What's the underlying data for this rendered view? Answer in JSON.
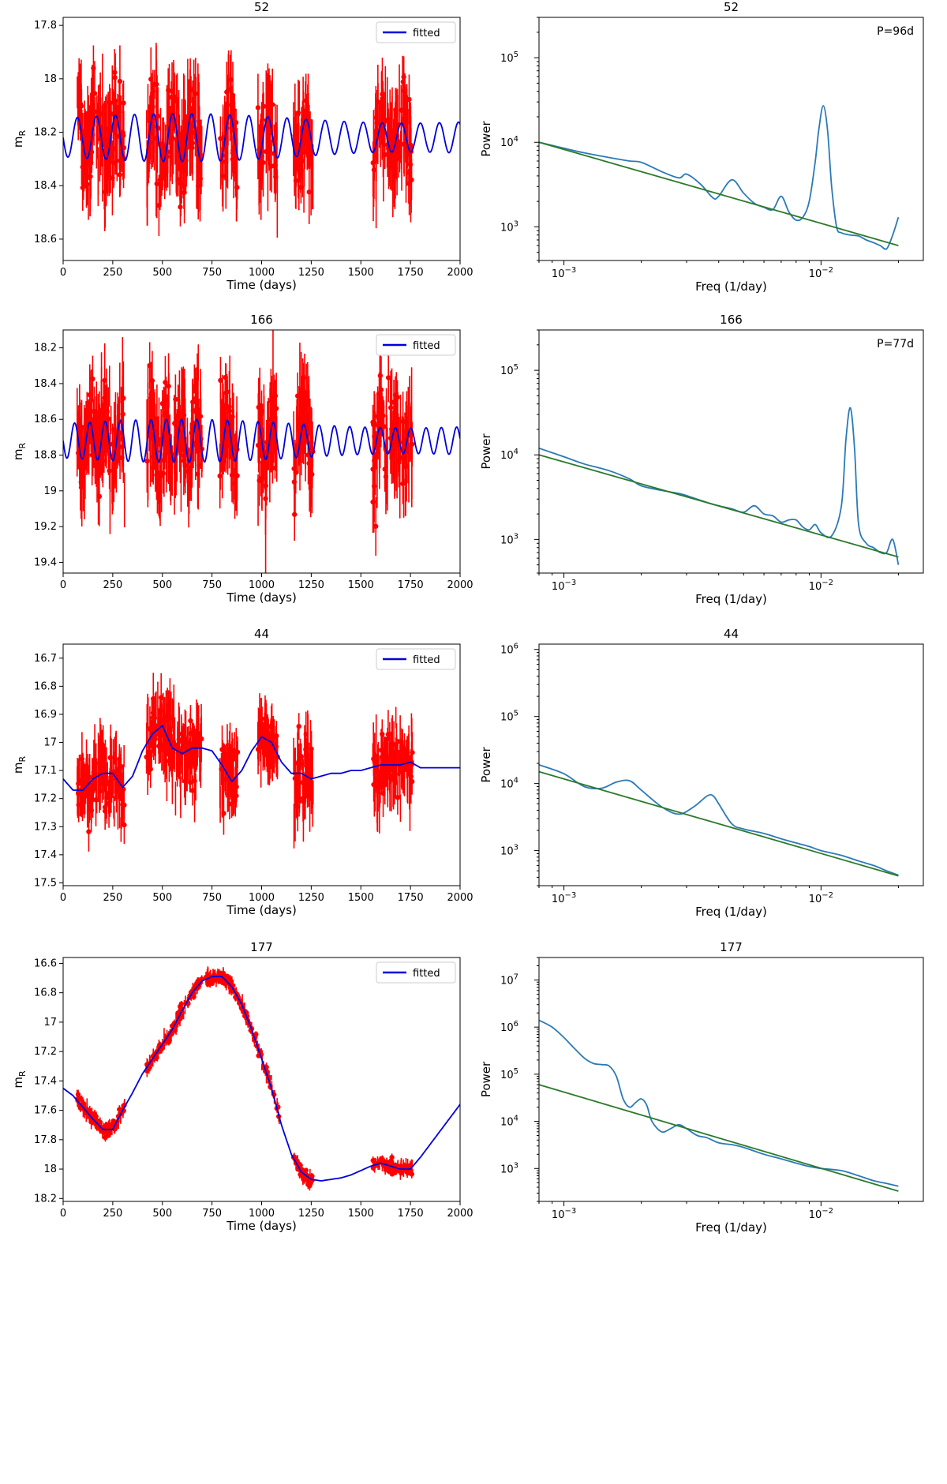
{
  "figure": {
    "layout": "4 rows x 2 columns"
  },
  "colors": {
    "observed": "#ff0000",
    "fitted": "#0000dd",
    "psd": "#2a7ab8",
    "powerlaw": "#2a7a2a"
  },
  "chart_data": [
    {
      "type": "line",
      "kind": "lightcurve",
      "title": "52",
      "xlabel": "Time (days)",
      "ylabel": "m_R",
      "xlim": [
        0,
        2000
      ],
      "ylim": [
        18.68,
        17.77
      ],
      "y_inverted": true,
      "xticks": [
        0,
        250,
        500,
        750,
        1000,
        1250,
        1500,
        1750,
        2000
      ],
      "yticks": [
        17.8,
        18.0,
        18.2,
        18.4,
        18.6
      ],
      "legend": {
        "label": "fitted",
        "position": "top-right"
      },
      "series": [
        {
          "name": "fitted",
          "role": "model",
          "period_days": 96,
          "mean": 18.22,
          "amplitude": 0.09,
          "x_range": [
            0,
            2000
          ]
        },
        {
          "role": "observed",
          "segments": [
            [
              70,
              310
            ],
            [
              420,
              700
            ],
            [
              790,
              880
            ],
            [
              980,
              1080
            ],
            [
              1160,
              1260
            ],
            [
              1560,
              1760
            ]
          ],
          "mean": 18.25,
          "scatter": 0.2
        }
      ]
    },
    {
      "type": "line",
      "kind": "psd",
      "title": "52",
      "xlabel": "Freq (1/day)",
      "ylabel": "Power",
      "x_scale": "log",
      "y_scale": "log",
      "xlim": [
        0.0008,
        0.025
      ],
      "ylim": [
        400,
        300000
      ],
      "xticks": [
        0.001,
        0.01
      ],
      "yticks": [
        1000,
        10000,
        100000
      ],
      "annotation": "P=96d",
      "powerlaw": {
        "x": [
          0.0008,
          0.02
        ],
        "y": [
          10000,
          600
        ]
      },
      "psd": {
        "x": [
          0.0008,
          0.001,
          0.0012,
          0.0015,
          0.0018,
          0.002,
          0.0024,
          0.0028,
          0.003,
          0.0034,
          0.0038,
          0.004,
          0.0045,
          0.005,
          0.0055,
          0.006,
          0.0065,
          0.007,
          0.0075,
          0.008,
          0.0085,
          0.009,
          0.0095,
          0.0098,
          0.0102,
          0.0106,
          0.011,
          0.0115,
          0.012,
          0.013,
          0.014,
          0.015,
          0.016,
          0.017,
          0.018,
          0.019,
          0.02
        ],
        "y": [
          10000,
          8500,
          7500,
          6600,
          6000,
          5800,
          4500,
          3800,
          4200,
          3200,
          2200,
          2300,
          3600,
          2500,
          1900,
          1700,
          1600,
          2300,
          1500,
          1200,
          1300,
          2000,
          6000,
          14000,
          27000,
          14000,
          3000,
          1000,
          850,
          800,
          780,
          700,
          650,
          600,
          550,
          800,
          1300
        ]
      }
    },
    {
      "type": "line",
      "kind": "lightcurve",
      "title": "166",
      "xlabel": "Time (days)",
      "ylabel": "m_R",
      "xlim": [
        0,
        2000
      ],
      "ylim": [
        19.46,
        18.1
      ],
      "y_inverted": true,
      "xticks": [
        0,
        250,
        500,
        750,
        1000,
        1250,
        1500,
        1750,
        2000
      ],
      "yticks": [
        18.2,
        18.4,
        18.6,
        18.8,
        19.0,
        19.2,
        19.4
      ],
      "legend": {
        "label": "fitted",
        "position": "top-right"
      },
      "series": [
        {
          "name": "fitted",
          "role": "model",
          "period_days": 77,
          "mean": 18.72,
          "amplitude": 0.12,
          "x_range": [
            0,
            2000
          ]
        },
        {
          "role": "observed",
          "segments": [
            [
              70,
              310
            ],
            [
              420,
              700
            ],
            [
              790,
              880
            ],
            [
              980,
              1080
            ],
            [
              1160,
              1260
            ],
            [
              1560,
              1760
            ]
          ],
          "mean": 18.75,
          "scatter": 0.3
        }
      ]
    },
    {
      "type": "line",
      "kind": "psd",
      "title": "166",
      "xlabel": "Freq (1/day)",
      "ylabel": "Power",
      "x_scale": "log",
      "y_scale": "log",
      "xlim": [
        0.0008,
        0.025
      ],
      "ylim": [
        400,
        300000
      ],
      "xticks": [
        0.001,
        0.01
      ],
      "yticks": [
        1000,
        10000,
        100000
      ],
      "annotation": "P=77d",
      "powerlaw": {
        "x": [
          0.0008,
          0.02
        ],
        "y": [
          10000,
          620
        ]
      },
      "psd": {
        "x": [
          0.0008,
          0.001,
          0.0012,
          0.0015,
          0.0018,
          0.002,
          0.0024,
          0.0028,
          0.003,
          0.0034,
          0.0038,
          0.004,
          0.0045,
          0.005,
          0.0055,
          0.006,
          0.0065,
          0.007,
          0.0075,
          0.008,
          0.0085,
          0.009,
          0.0095,
          0.01,
          0.011,
          0.012,
          0.0125,
          0.013,
          0.0135,
          0.014,
          0.015,
          0.016,
          0.017,
          0.018,
          0.019,
          0.02
        ],
        "y": [
          12000,
          9500,
          7800,
          6500,
          5200,
          4300,
          3800,
          3500,
          3300,
          2900,
          2600,
          2500,
          2300,
          2100,
          2500,
          2000,
          1900,
          1600,
          1700,
          1700,
          1400,
          1300,
          1500,
          1200,
          1100,
          2500,
          15000,
          36000,
          12000,
          1500,
          900,
          800,
          700,
          700,
          1000,
          500
        ]
      }
    },
    {
      "type": "line",
      "kind": "lightcurve",
      "title": "44",
      "xlabel": "Time (days)",
      "ylabel": "m_R",
      "xlim": [
        0,
        2000
      ],
      "ylim": [
        17.51,
        16.65
      ],
      "y_inverted": true,
      "xticks": [
        0,
        250,
        500,
        750,
        1000,
        1250,
        1500,
        1750,
        2000
      ],
      "yticks": [
        16.7,
        16.8,
        16.9,
        17.0,
        17.1,
        17.2,
        17.3,
        17.4,
        17.5
      ],
      "legend": {
        "label": "fitted",
        "position": "top-right"
      },
      "series": [
        {
          "name": "fitted",
          "role": "model",
          "x": [
            0,
            50,
            100,
            150,
            200,
            250,
            300,
            350,
            400,
            450,
            500,
            550,
            600,
            650,
            700,
            750,
            800,
            850,
            900,
            950,
            1000,
            1050,
            1100,
            1150,
            1200,
            1250,
            1300,
            1350,
            1400,
            1450,
            1500,
            1550,
            1600,
            1650,
            1700,
            1750,
            1800,
            1900,
            2000
          ],
          "y": [
            17.13,
            17.17,
            17.17,
            17.13,
            17.11,
            17.11,
            17.16,
            17.12,
            17.03,
            16.97,
            16.94,
            17.02,
            17.04,
            17.02,
            17.02,
            17.03,
            17.08,
            17.14,
            17.1,
            17.03,
            16.98,
            17.0,
            17.07,
            17.11,
            17.11,
            17.13,
            17.12,
            17.11,
            17.11,
            17.1,
            17.1,
            17.09,
            17.08,
            17.08,
            17.08,
            17.07,
            17.09,
            17.09,
            17.09
          ]
        },
        {
          "role": "observed",
          "segments": [
            [
              70,
              310
            ],
            [
              420,
              700
            ],
            [
              790,
              880
            ],
            [
              980,
              1080
            ],
            [
              1160,
              1260
            ],
            [
              1560,
              1760
            ]
          ],
          "scatter": 0.14
        }
      ]
    },
    {
      "type": "line",
      "kind": "psd",
      "title": "44",
      "xlabel": "Freq (1/day)",
      "ylabel": "Power",
      "x_scale": "log",
      "y_scale": "log",
      "xlim": [
        0.0008,
        0.025
      ],
      "ylim": [
        300,
        1200000
      ],
      "xticks": [
        0.001,
        0.01
      ],
      "yticks": [
        1000,
        10000,
        100000,
        1000000
      ],
      "powerlaw": {
        "x": [
          0.0008,
          0.02
        ],
        "y": [
          15000,
          420
        ]
      },
      "psd": {
        "x": [
          0.0008,
          0.001,
          0.0012,
          0.0014,
          0.0016,
          0.0018,
          0.002,
          0.0024,
          0.0028,
          0.0032,
          0.0036,
          0.0038,
          0.004,
          0.0045,
          0.005,
          0.006,
          0.007,
          0.008,
          0.009,
          0.01,
          0.012,
          0.014,
          0.016,
          0.018,
          0.02
        ],
        "y": [
          19000,
          14000,
          9000,
          8500,
          10500,
          11000,
          8000,
          4500,
          3500,
          4500,
          6500,
          6600,
          5000,
          2500,
          2100,
          1800,
          1500,
          1300,
          1150,
          1000,
          850,
          700,
          600,
          500,
          430
        ]
      }
    },
    {
      "type": "line",
      "kind": "lightcurve",
      "title": "177",
      "xlabel": "Time (days)",
      "ylabel": "m_R",
      "xlim": [
        0,
        2000
      ],
      "ylim": [
        18.22,
        16.56
      ],
      "y_inverted": true,
      "xticks": [
        0,
        250,
        500,
        750,
        1000,
        1250,
        1500,
        1750,
        2000
      ],
      "yticks": [
        16.6,
        16.8,
        17.0,
        17.2,
        17.4,
        17.6,
        17.8,
        18.0,
        18.2
      ],
      "legend": {
        "label": "fitted",
        "position": "top-right"
      },
      "series": [
        {
          "name": "fitted",
          "role": "model",
          "x": [
            0,
            50,
            100,
            150,
            200,
            250,
            300,
            350,
            400,
            450,
            500,
            550,
            600,
            650,
            700,
            750,
            800,
            850,
            900,
            950,
            1000,
            1050,
            1100,
            1150,
            1200,
            1250,
            1300,
            1350,
            1400,
            1450,
            1500,
            1550,
            1600,
            1650,
            1700,
            1750,
            1800,
            1850,
            1900,
            1950,
            2000
          ],
          "y": [
            17.45,
            17.5,
            17.58,
            17.66,
            17.73,
            17.73,
            17.6,
            17.48,
            17.35,
            17.25,
            17.15,
            17.05,
            16.92,
            16.8,
            16.72,
            16.69,
            16.69,
            16.76,
            16.88,
            17.05,
            17.25,
            17.45,
            17.7,
            17.9,
            18.02,
            18.07,
            18.08,
            18.07,
            18.06,
            18.04,
            18.01,
            17.98,
            17.96,
            17.98,
            18.0,
            18.0,
            17.92,
            17.83,
            17.74,
            17.65,
            17.56
          ]
        },
        {
          "role": "observed",
          "segments": [
            [
              70,
              310
            ],
            [
              420,
              700
            ],
            [
              720,
              1090
            ],
            [
              1160,
              1260
            ],
            [
              1560,
              1760
            ]
          ],
          "scatter": 0.05
        }
      ]
    },
    {
      "type": "line",
      "kind": "psd",
      "title": "177",
      "xlabel": "Freq (1/day)",
      "ylabel": "Power",
      "x_scale": "log",
      "y_scale": "log",
      "xlim": [
        0.0008,
        0.025
      ],
      "ylim": [
        200,
        30000000
      ],
      "xticks": [
        0.001,
        0.01
      ],
      "yticks": [
        1000,
        10000,
        100000,
        1000000,
        10000000
      ],
      "powerlaw": {
        "x": [
          0.0008,
          0.02
        ],
        "y": [
          60000,
          330
        ]
      },
      "psd": {
        "x": [
          0.0008,
          0.0009,
          0.001,
          0.0011,
          0.0012,
          0.0013,
          0.0014,
          0.0015,
          0.0016,
          0.0017,
          0.0018,
          0.0019,
          0.002,
          0.0021,
          0.0022,
          0.0024,
          0.0026,
          0.0028,
          0.003,
          0.0033,
          0.0036,
          0.004,
          0.0045,
          0.005,
          0.006,
          0.007,
          0.008,
          0.009,
          0.01,
          0.012,
          0.014,
          0.016,
          0.018,
          0.02
        ],
        "y": [
          1400000,
          1000000,
          600000,
          350000,
          220000,
          170000,
          160000,
          150000,
          90000,
          30000,
          20000,
          25000,
          30000,
          22000,
          10000,
          6000,
          7000,
          8500,
          7000,
          5000,
          4500,
          3500,
          3200,
          2800,
          2000,
          1600,
          1300,
          1100,
          1000,
          900,
          700,
          550,
          480,
          420
        ]
      }
    }
  ]
}
